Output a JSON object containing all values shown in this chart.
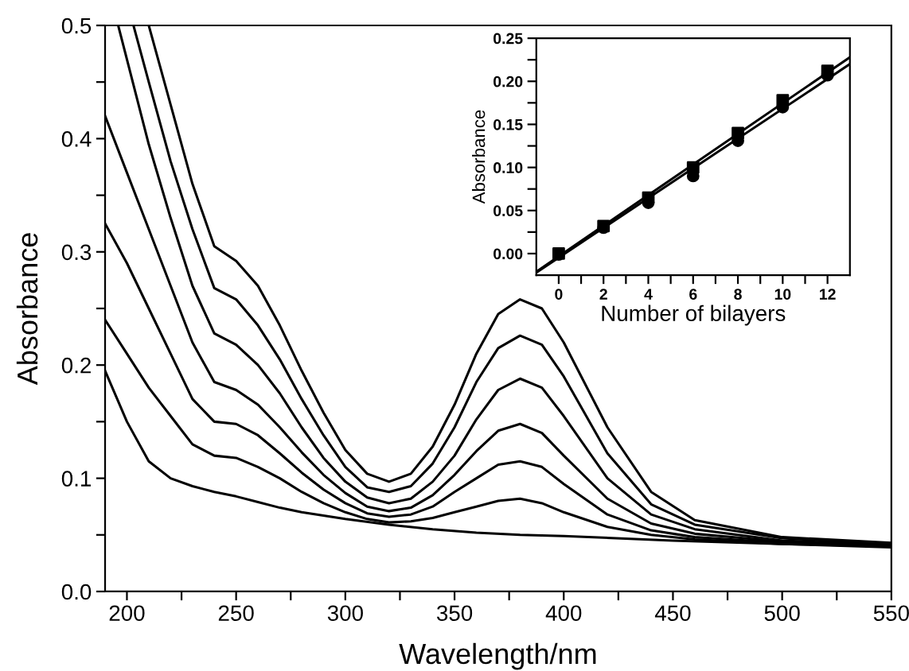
{
  "chart_data": [
    {
      "type": "line",
      "xlabel": "Wavelength/nm",
      "ylabel": "Absorbance",
      "xlim": [
        190,
        550
      ],
      "ylim": [
        0,
        0.5
      ],
      "xticks": [
        200,
        {
          "value": 225,
          "label": null
        },
        250,
        {
          "value": 275,
          "label": null
        },
        300,
        {
          "value": 325,
          "label": null
        },
        350,
        {
          "value": 375,
          "label": null
        },
        400,
        {
          "value": 425,
          "label": null
        },
        450,
        {
          "value": 475,
          "label": null
        },
        500,
        {
          "value": 525,
          "label": null
        },
        550
      ],
      "yticks": [
        {
          "value": 0,
          "label": "0.0"
        },
        {
          "value": 0.05,
          "label": null
        },
        0.1,
        {
          "value": 0.15,
          "label": null
        },
        0.2,
        {
          "value": 0.25,
          "label": null
        },
        0.3,
        {
          "value": 0.35,
          "label": null
        },
        0.4,
        {
          "value": 0.45,
          "label": null
        },
        0.5
      ],
      "grid": false,
      "legend": false,
      "marker": "none",
      "line_style": "solid",
      "series": [
        {
          "color": "#000000",
          "x": [
            190,
            200,
            210,
            220,
            230,
            240,
            250,
            260,
            270,
            280,
            300,
            320,
            340,
            360,
            380,
            400,
            450,
            500,
            550
          ],
          "values": [
            0.195,
            0.15,
            0.115,
            0.1,
            0.093,
            0.088,
            0.084,
            0.079,
            0.074,
            0.07,
            0.064,
            0.059,
            0.055,
            0.052,
            0.05,
            0.049,
            0.045,
            0.042,
            0.04
          ]
        },
        {
          "color": "#000000",
          "x": [
            190,
            200,
            210,
            220,
            230,
            240,
            250,
            260,
            270,
            280,
            290,
            300,
            310,
            320,
            330,
            340,
            350,
            360,
            370,
            380,
            390,
            400,
            420,
            440,
            460,
            500,
            550
          ],
          "values": [
            0.24,
            0.21,
            0.18,
            0.155,
            0.13,
            0.12,
            0.118,
            0.11,
            0.1,
            0.088,
            0.078,
            0.07,
            0.064,
            0.061,
            0.062,
            0.065,
            0.07,
            0.075,
            0.08,
            0.082,
            0.078,
            0.07,
            0.057,
            0.05,
            0.046,
            0.042,
            0.039
          ]
        },
        {
          "color": "#000000",
          "x": [
            190,
            200,
            210,
            220,
            230,
            240,
            250,
            260,
            270,
            280,
            290,
            300,
            310,
            320,
            330,
            340,
            350,
            360,
            370,
            380,
            390,
            400,
            420,
            440,
            460,
            500,
            550
          ],
          "values": [
            0.325,
            0.29,
            0.25,
            0.21,
            0.17,
            0.15,
            0.148,
            0.138,
            0.122,
            0.105,
            0.09,
            0.078,
            0.069,
            0.066,
            0.068,
            0.075,
            0.088,
            0.1,
            0.112,
            0.115,
            0.11,
            0.095,
            0.068,
            0.054,
            0.048,
            0.043,
            0.04
          ]
        },
        {
          "color": "#000000",
          "x": [
            190,
            200,
            210,
            220,
            230,
            240,
            250,
            260,
            270,
            280,
            290,
            300,
            310,
            320,
            330,
            340,
            350,
            360,
            370,
            380,
            390,
            400,
            420,
            440,
            460,
            500,
            550
          ],
          "values": [
            0.42,
            0.37,
            0.32,
            0.27,
            0.22,
            0.185,
            0.178,
            0.165,
            0.145,
            0.123,
            0.103,
            0.087,
            0.075,
            0.071,
            0.074,
            0.085,
            0.103,
            0.124,
            0.142,
            0.148,
            0.14,
            0.12,
            0.082,
            0.06,
            0.051,
            0.044,
            0.04
          ]
        },
        {
          "color": "#000000",
          "x": [
            196,
            200,
            210,
            220,
            230,
            240,
            250,
            260,
            270,
            280,
            290,
            300,
            310,
            320,
            330,
            340,
            350,
            360,
            370,
            380,
            390,
            400,
            420,
            440,
            460,
            500,
            550
          ],
          "values": [
            0.5,
            0.47,
            0.395,
            0.33,
            0.27,
            0.228,
            0.218,
            0.2,
            0.175,
            0.145,
            0.118,
            0.097,
            0.083,
            0.078,
            0.082,
            0.097,
            0.12,
            0.152,
            0.178,
            0.188,
            0.18,
            0.155,
            0.1,
            0.068,
            0.055,
            0.045,
            0.041
          ]
        },
        {
          "color": "#000000",
          "x": [
            203,
            210,
            220,
            230,
            240,
            250,
            260,
            270,
            280,
            290,
            300,
            310,
            320,
            330,
            340,
            350,
            360,
            370,
            380,
            390,
            400,
            420,
            440,
            460,
            500,
            550
          ],
          "values": [
            0.5,
            0.45,
            0.38,
            0.32,
            0.268,
            0.258,
            0.235,
            0.205,
            0.17,
            0.138,
            0.11,
            0.092,
            0.088,
            0.093,
            0.113,
            0.145,
            0.185,
            0.215,
            0.226,
            0.218,
            0.19,
            0.122,
            0.077,
            0.059,
            0.047,
            0.042
          ]
        },
        {
          "color": "#000000",
          "x": [
            210,
            220,
            230,
            240,
            250,
            260,
            270,
            280,
            290,
            300,
            310,
            320,
            330,
            340,
            350,
            360,
            370,
            380,
            390,
            400,
            420,
            440,
            460,
            500,
            550
          ],
          "values": [
            0.5,
            0.43,
            0.36,
            0.305,
            0.292,
            0.27,
            0.235,
            0.195,
            0.158,
            0.125,
            0.104,
            0.097,
            0.104,
            0.128,
            0.165,
            0.21,
            0.245,
            0.258,
            0.25,
            0.22,
            0.145,
            0.088,
            0.063,
            0.048,
            0.043
          ]
        }
      ]
    },
    {
      "type": "scatter",
      "xlabel": "Number of bilayers",
      "ylabel": "Absorbance",
      "xlim": [
        -1,
        13
      ],
      "ylim": [
        -0.025,
        0.25
      ],
      "xticks": [
        0,
        {
          "value": 1,
          "label": null
        },
        2,
        {
          "value": 3,
          "label": null
        },
        4,
        {
          "value": 5,
          "label": null
        },
        6,
        {
          "value": 7,
          "label": null
        },
        8,
        {
          "value": 9,
          "label": null
        },
        10,
        {
          "value": 11,
          "label": null
        },
        12
      ],
      "yticks": [
        {
          "value": 0,
          "label": "0.00"
        },
        {
          "value": 0.025,
          "label": null
        },
        {
          "value": 0.05,
          "label": "0.05"
        },
        {
          "value": 0.075,
          "label": null
        },
        {
          "value": 0.1,
          "label": "0.10"
        },
        {
          "value": 0.125,
          "label": null
        },
        {
          "value": 0.15,
          "label": "0.15"
        },
        {
          "value": 0.175,
          "label": null
        },
        {
          "value": 0.2,
          "label": "0.20"
        },
        {
          "value": 0.225,
          "label": null
        },
        {
          "value": 0.25,
          "label": "0.25"
        }
      ],
      "grid": false,
      "legend": false,
      "series": [
        {
          "color": "#000000",
          "marker": "square",
          "x": [
            0,
            2,
            4,
            6,
            8,
            10,
            12
          ],
          "values": [
            0,
            0.032,
            0.065,
            0.1,
            0.14,
            0.178,
            0.212
          ]
        },
        {
          "color": "#000000",
          "marker": "circle",
          "x": [
            0,
            2,
            4,
            6,
            8,
            10,
            12
          ],
          "values": [
            -0.001,
            0.03,
            0.059,
            0.09,
            0.131,
            0.17,
            0.207
          ]
        },
        {
          "type": "line",
          "color": "#000000",
          "marker": "none",
          "x": [
            -1,
            13
          ],
          "values": [
            -0.021,
            0.228
          ]
        },
        {
          "type": "line",
          "color": "#000000",
          "marker": "none",
          "x": [
            -1,
            13
          ],
          "values": [
            -0.022,
            0.22
          ]
        }
      ]
    }
  ]
}
